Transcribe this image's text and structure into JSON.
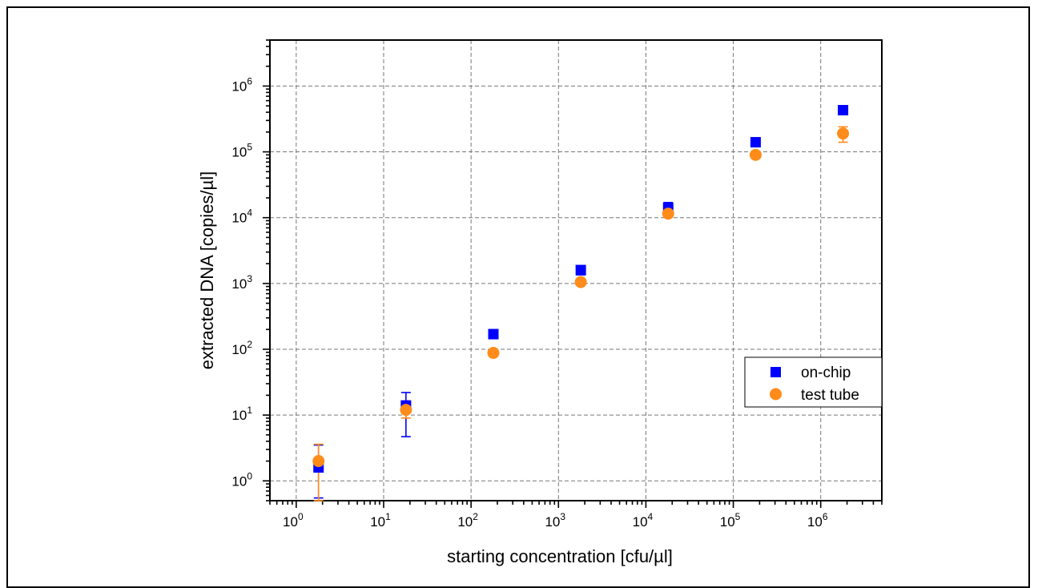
{
  "chart_data": {
    "type": "scatter",
    "xlabel": "starting concentration [cfu/µl]",
    "ylabel": "extracted DNA [copies/µl]",
    "x_scale": "log",
    "y_scale": "log",
    "xlim": [
      0.5,
      5000000
    ],
    "ylim": [
      0.5,
      5000000
    ],
    "x_ticks": [
      1,
      10,
      100,
      1000,
      10000,
      100000,
      1000000
    ],
    "y_ticks": [
      1,
      10,
      100,
      1000,
      10000,
      100000,
      1000000
    ],
    "tick_labels": {
      "x": [
        {
          "base": "10",
          "exp": "0"
        },
        {
          "base": "10",
          "exp": "1"
        },
        {
          "base": "10",
          "exp": "2"
        },
        {
          "base": "10",
          "exp": "3"
        },
        {
          "base": "10",
          "exp": "4"
        },
        {
          "base": "10",
          "exp": "5"
        },
        {
          "base": "10",
          "exp": "6"
        }
      ],
      "y": [
        {
          "base": "10",
          "exp": "0"
        },
        {
          "base": "10",
          "exp": "1"
        },
        {
          "base": "10",
          "exp": "2"
        },
        {
          "base": "10",
          "exp": "3"
        },
        {
          "base": "10",
          "exp": "4"
        },
        {
          "base": "10",
          "exp": "5"
        },
        {
          "base": "10",
          "exp": "6"
        }
      ]
    },
    "grid": true,
    "legend_position": "right-middle",
    "series": [
      {
        "name": "on-chip",
        "marker": "square",
        "color": "#0000ff",
        "points": [
          {
            "x": 1.8,
            "y": 1.6,
            "err_low": 0.55,
            "err_high": 3.5
          },
          {
            "x": 18,
            "y": 14,
            "err_low": 4.7,
            "err_high": 22
          },
          {
            "x": 180,
            "y": 170,
            "err_low": 145,
            "err_high": 195
          },
          {
            "x": 1800,
            "y": 1600,
            "err_low": 1350,
            "err_high": 1850
          },
          {
            "x": 18000,
            "y": 14000,
            "err_low": 11000,
            "err_high": 17000
          },
          {
            "x": 180000,
            "y": 140000,
            "err_low": 120000,
            "err_high": 160000
          },
          {
            "x": 1800000,
            "y": 430000,
            "err_low": 400000,
            "err_high": 460000
          }
        ]
      },
      {
        "name": "test tube",
        "marker": "circle",
        "color": "#ff8c1a",
        "points": [
          {
            "x": 1.8,
            "y": 2.0,
            "err_low": 0.5,
            "err_high": 3.6
          },
          {
            "x": 18,
            "y": 12,
            "err_low": 9,
            "err_high": 14
          },
          {
            "x": 180,
            "y": 88,
            "err_low": 80,
            "err_high": 96
          },
          {
            "x": 1800,
            "y": 1050,
            "err_low": 980,
            "err_high": 1120
          },
          {
            "x": 18000,
            "y": 11500,
            "err_low": 10500,
            "err_high": 12500
          },
          {
            "x": 180000,
            "y": 90000,
            "err_low": 84000,
            "err_high": 96000
          },
          {
            "x": 1800000,
            "y": 190000,
            "err_low": 140000,
            "err_high": 240000
          }
        ]
      }
    ]
  }
}
